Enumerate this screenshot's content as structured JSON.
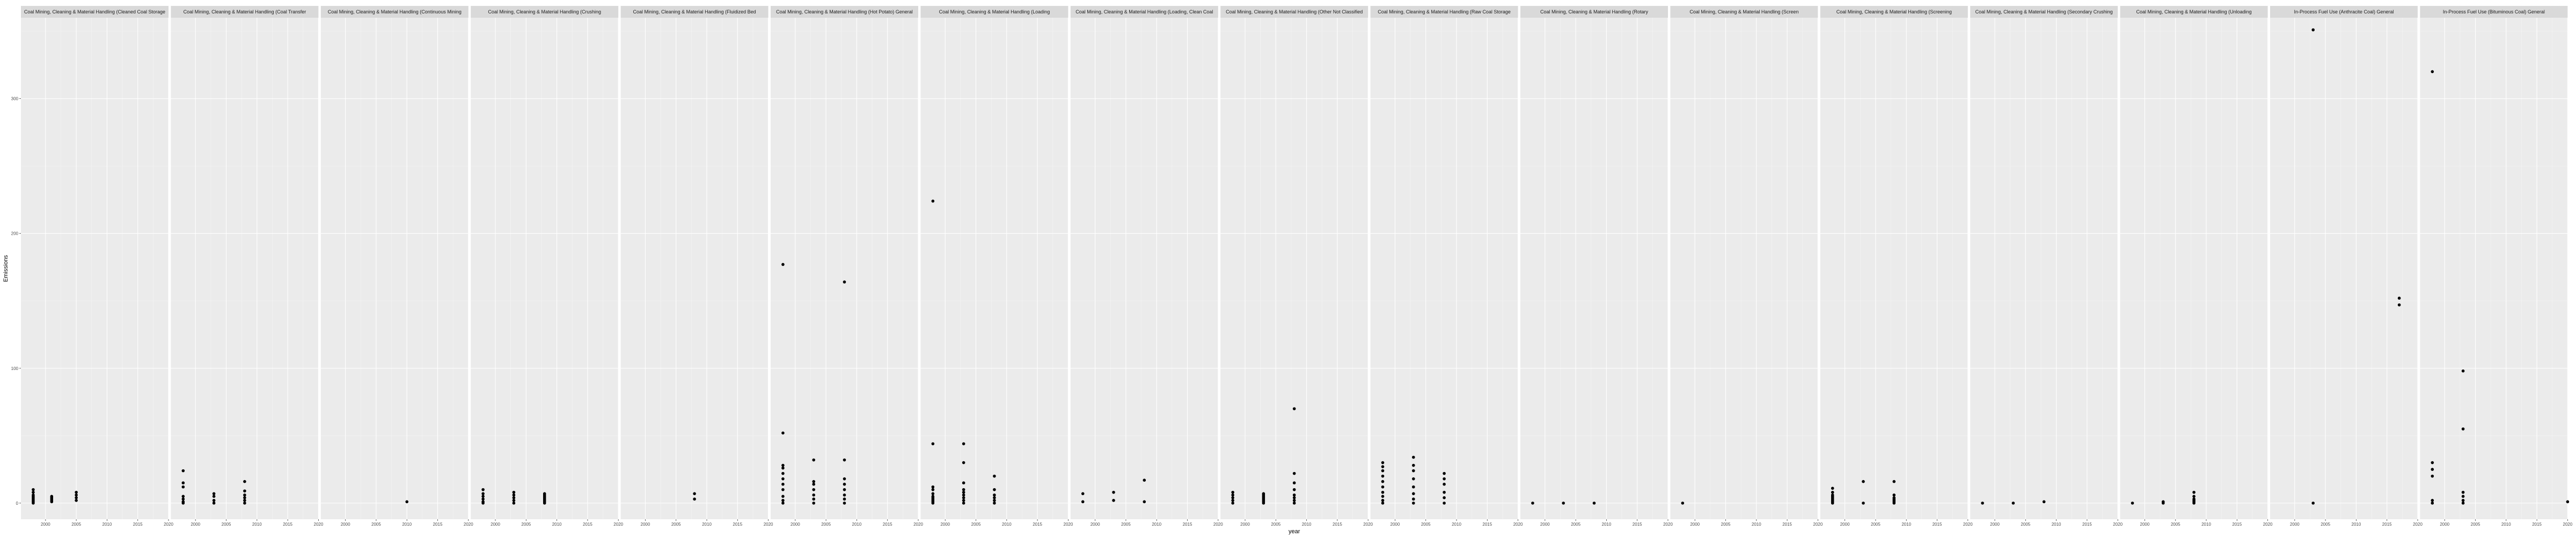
{
  "chart_data": {
    "type": "scatter",
    "xlabel": "year",
    "ylabel": "Emissions",
    "xlim": [
      1996,
      2020
    ],
    "ylim": [
      -12,
      360
    ],
    "x_ticks": [
      2000,
      2005,
      2010,
      2015,
      2020
    ],
    "x_tick_labels": [
      "2000",
      "2005",
      "2010",
      "2015",
      "2020"
    ],
    "y_ticks": [
      0,
      100,
      200,
      300
    ],
    "y_tick_labels": [
      "0",
      "100",
      "200",
      "300"
    ],
    "grid": true,
    "point_color": "#000000",
    "panel_background": "#ebebeb",
    "strip_background": "#d9d9d9",
    "panels": [
      {
        "title": "Coal Mining, Cleaning & Material Handling (Cleaned Coal Storage",
        "points": [
          [
            1998,
            0
          ],
          [
            1998,
            1
          ],
          [
            1998,
            2
          ],
          [
            1998,
            3
          ],
          [
            1998,
            4
          ],
          [
            1998,
            5
          ],
          [
            1998,
            6
          ],
          [
            1998,
            8
          ],
          [
            1998,
            10
          ],
          [
            2001,
            1
          ],
          [
            2001,
            2
          ],
          [
            2001,
            3
          ],
          [
            2001,
            4
          ],
          [
            2001,
            5
          ],
          [
            2005,
            2
          ],
          [
            2005,
            4
          ],
          [
            2005,
            6
          ],
          [
            2005,
            8
          ]
        ]
      },
      {
        "title": "Coal Mining, Cleaning & Material Handling (Coal Transfer",
        "points": [
          [
            1998,
            0
          ],
          [
            1998,
            1
          ],
          [
            1998,
            3
          ],
          [
            1998,
            5
          ],
          [
            1998,
            12
          ],
          [
            1998,
            15
          ],
          [
            1998,
            24
          ],
          [
            2003,
            0
          ],
          [
            2003,
            2
          ],
          [
            2003,
            5
          ],
          [
            2003,
            7
          ],
          [
            2008,
            0
          ],
          [
            2008,
            2
          ],
          [
            2008,
            4
          ],
          [
            2008,
            6
          ],
          [
            2008,
            9
          ],
          [
            2008,
            16
          ]
        ]
      },
      {
        "title": "Coal Mining, Cleaning & Material Handling (Continuous Mining",
        "points": [
          [
            2010,
            1
          ]
        ]
      },
      {
        "title": "Coal Mining, Cleaning & Material Handling (Crushing",
        "points": [
          [
            1998,
            0
          ],
          [
            1998,
            1
          ],
          [
            1998,
            3
          ],
          [
            1998,
            5
          ],
          [
            1998,
            7
          ],
          [
            1998,
            10
          ],
          [
            2003,
            0
          ],
          [
            2003,
            2
          ],
          [
            2003,
            4
          ],
          [
            2003,
            6
          ],
          [
            2003,
            8
          ],
          [
            2008,
            0
          ],
          [
            2008,
            1
          ],
          [
            2008,
            2
          ],
          [
            2008,
            3
          ],
          [
            2008,
            4
          ],
          [
            2008,
            5
          ],
          [
            2008,
            6
          ],
          [
            2008,
            7
          ]
        ]
      },
      {
        "title": "Coal Mining, Cleaning & Material Handling (Fluidized Bed",
        "points": [
          [
            2008,
            3
          ],
          [
            2008,
            7
          ]
        ]
      },
      {
        "title": "Coal Mining, Cleaning & Material Handling (Hot Potato) General",
        "points": [
          [
            1998,
            0
          ],
          [
            1998,
            2
          ],
          [
            1998,
            5
          ],
          [
            1998,
            10
          ],
          [
            1998,
            14
          ],
          [
            1998,
            18
          ],
          [
            1998,
            22
          ],
          [
            1998,
            26
          ],
          [
            1998,
            28
          ],
          [
            1998,
            52
          ],
          [
            1998,
            177
          ],
          [
            2003,
            0
          ],
          [
            2003,
            3
          ],
          [
            2003,
            6
          ],
          [
            2003,
            10
          ],
          [
            2003,
            14
          ],
          [
            2003,
            16
          ],
          [
            2003,
            32
          ],
          [
            2008,
            0
          ],
          [
            2008,
            3
          ],
          [
            2008,
            6
          ],
          [
            2008,
            10
          ],
          [
            2008,
            14
          ],
          [
            2008,
            18
          ],
          [
            2008,
            32
          ],
          [
            2008,
            164
          ]
        ]
      },
      {
        "title": "Coal Mining, Cleaning & Material Handling (Loading",
        "points": [
          [
            1998,
            0
          ],
          [
            1998,
            1
          ],
          [
            1998,
            2
          ],
          [
            1998,
            3
          ],
          [
            1998,
            4
          ],
          [
            1998,
            5
          ],
          [
            1998,
            7
          ],
          [
            1998,
            10
          ],
          [
            1998,
            12
          ],
          [
            1998,
            44
          ],
          [
            1998,
            224
          ],
          [
            2003,
            0
          ],
          [
            2003,
            2
          ],
          [
            2003,
            4
          ],
          [
            2003,
            6
          ],
          [
            2003,
            8
          ],
          [
            2003,
            10
          ],
          [
            2003,
            15
          ],
          [
            2003,
            30
          ],
          [
            2003,
            44
          ],
          [
            2008,
            0
          ],
          [
            2008,
            2
          ],
          [
            2008,
            4
          ],
          [
            2008,
            6
          ],
          [
            2008,
            10
          ],
          [
            2008,
            20
          ]
        ]
      },
      {
        "title": "Coal Mining, Cleaning & Material Handling (Loading, Clean Coal",
        "points": [
          [
            1998,
            1
          ],
          [
            1998,
            7
          ],
          [
            2003,
            2
          ],
          [
            2003,
            8
          ],
          [
            2008,
            1
          ],
          [
            2008,
            17
          ]
        ]
      },
      {
        "title": "Coal Mining, Cleaning & Material Handling (Other Not Classified",
        "points": [
          [
            1998,
            0
          ],
          [
            1998,
            2
          ],
          [
            1998,
            4
          ],
          [
            1998,
            6
          ],
          [
            1998,
            8
          ],
          [
            2003,
            0
          ],
          [
            2003,
            1
          ],
          [
            2003,
            2
          ],
          [
            2003,
            3
          ],
          [
            2003,
            4
          ],
          [
            2003,
            5
          ],
          [
            2003,
            6
          ],
          [
            2003,
            7
          ],
          [
            2008,
            0
          ],
          [
            2008,
            2
          ],
          [
            2008,
            4
          ],
          [
            2008,
            6
          ],
          [
            2008,
            10
          ],
          [
            2008,
            15
          ],
          [
            2008,
            22
          ],
          [
            2008,
            70
          ]
        ]
      },
      {
        "title": "Coal Mining, Cleaning & Material Handling (Raw Coal Storage",
        "points": [
          [
            1998,
            0
          ],
          [
            1998,
            2
          ],
          [
            1998,
            5
          ],
          [
            1998,
            8
          ],
          [
            1998,
            12
          ],
          [
            1998,
            16
          ],
          [
            1998,
            20
          ],
          [
            1998,
            24
          ],
          [
            1998,
            27
          ],
          [
            1998,
            30
          ],
          [
            2003,
            0
          ],
          [
            2003,
            3
          ],
          [
            2003,
            7
          ],
          [
            2003,
            12
          ],
          [
            2003,
            18
          ],
          [
            2003,
            24
          ],
          [
            2003,
            28
          ],
          [
            2003,
            34
          ],
          [
            2008,
            0
          ],
          [
            2008,
            4
          ],
          [
            2008,
            8
          ],
          [
            2008,
            14
          ],
          [
            2008,
            18
          ],
          [
            2008,
            22
          ]
        ]
      },
      {
        "title": "Coal Mining, Cleaning & Material Handling (Rotary",
        "points": [
          [
            1998,
            0
          ],
          [
            2003,
            0
          ],
          [
            2008,
            0
          ]
        ]
      },
      {
        "title": "Coal Mining, Cleaning & Material Handling (Screen",
        "points": [
          [
            1998,
            0
          ]
        ]
      },
      {
        "title": "Coal Mining, Cleaning & Material Handling (Screening",
        "points": [
          [
            1998,
            0
          ],
          [
            1998,
            1
          ],
          [
            1998,
            2
          ],
          [
            1998,
            3
          ],
          [
            1998,
            4
          ],
          [
            1998,
            5
          ],
          [
            1998,
            6
          ],
          [
            1998,
            8
          ],
          [
            1998,
            11
          ],
          [
            2003,
            0
          ],
          [
            2003,
            16
          ],
          [
            2008,
            0
          ],
          [
            2008,
            1
          ],
          [
            2008,
            2
          ],
          [
            2008,
            3
          ],
          [
            2008,
            4
          ],
          [
            2008,
            6
          ],
          [
            2008,
            16
          ]
        ]
      },
      {
        "title": "Coal Mining, Cleaning & Material Handling (Secondary Crushing",
        "points": [
          [
            1998,
            0
          ],
          [
            2003,
            0
          ],
          [
            2008,
            1
          ]
        ]
      },
      {
        "title": "Coal Mining, Cleaning & Material Handling (Unloading",
        "points": [
          [
            1998,
            0
          ],
          [
            2003,
            0
          ],
          [
            2003,
            1
          ],
          [
            2008,
            0
          ],
          [
            2008,
            1
          ],
          [
            2008,
            2
          ],
          [
            2008,
            3
          ],
          [
            2008,
            5
          ],
          [
            2008,
            8
          ]
        ]
      },
      {
        "title": "In-Process Fuel Use (Anthracite Coal) General",
        "points": [
          [
            2003,
            0
          ],
          [
            2003,
            351
          ],
          [
            2017,
            147
          ],
          [
            2017,
            152
          ]
        ]
      },
      {
        "title": "In-Process Fuel Use (Bituminous Coal) General",
        "points": [
          [
            1998,
            0
          ],
          [
            1998,
            2
          ],
          [
            1998,
            20
          ],
          [
            1998,
            25
          ],
          [
            1998,
            30
          ],
          [
            1998,
            320
          ],
          [
            2003,
            0
          ],
          [
            2003,
            2
          ],
          [
            2003,
            5
          ],
          [
            2003,
            8
          ],
          [
            2003,
            55
          ],
          [
            2003,
            98
          ],
          [
            2020,
            1
          ]
        ]
      }
    ]
  }
}
